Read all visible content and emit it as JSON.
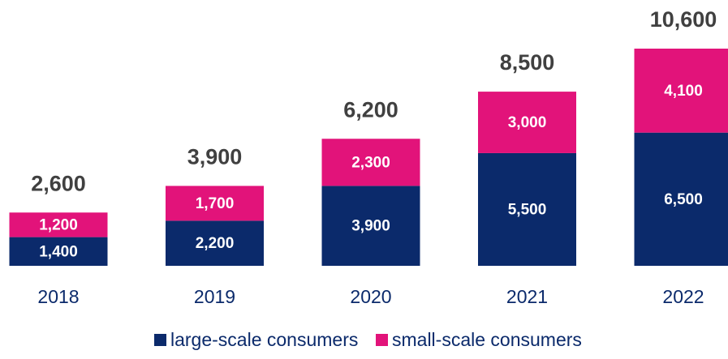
{
  "chart_data": {
    "type": "stacked-bar",
    "categories": [
      "2018",
      "2019",
      "2020",
      "2021",
      "2022"
    ],
    "series": [
      {
        "name": "large-scale consumers",
        "color": "#0b2a6b",
        "values": [
          1400,
          2200,
          3900,
          5500,
          6500
        ],
        "value_labels": [
          "1,400",
          "2,200",
          "3,900",
          "5,500",
          "6,500"
        ]
      },
      {
        "name": "small-scale consumers",
        "color": "#e2137a",
        "values": [
          1200,
          1700,
          2300,
          3000,
          4100
        ],
        "value_labels": [
          "1,200",
          "1,700",
          "2,300",
          "3,000",
          "4,100"
        ]
      }
    ],
    "total_labels": [
      "2,600",
      "3,900",
      "6,200",
      "8,500",
      "10,600"
    ],
    "legend": "bottom"
  }
}
